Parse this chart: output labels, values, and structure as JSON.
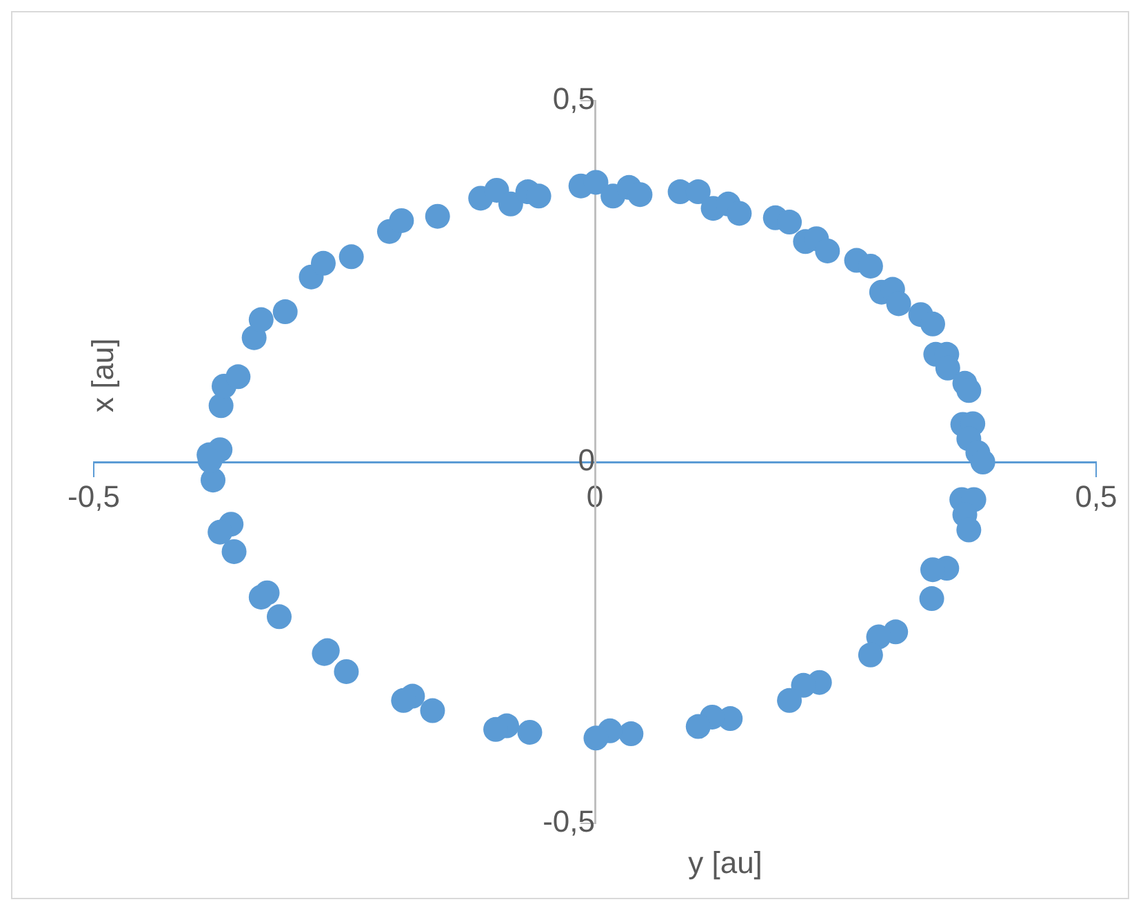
{
  "chart_data": {
    "type": "scatter",
    "xlabel": "y [au]",
    "ylabel": "x [au]",
    "xlim": [
      -0.5,
      0.5
    ],
    "ylim": [
      -0.5,
      0.5
    ],
    "xticks": [
      {
        "value": -0.5,
        "label": "-0,5"
      },
      0,
      {
        "value": 0.5,
        "label": "0,5"
      }
    ],
    "yticks": [
      {
        "value": -0.5,
        "label": "-0,5"
      },
      0,
      {
        "value": 0.5,
        "label": "0,5"
      }
    ],
    "grid": false,
    "legend": false,
    "marker": "circle",
    "series": [
      {
        "color": "#5b9bd5",
        "x": [
          -0.385,
          -0.374,
          -0.373,
          -0.37,
          -0.356,
          -0.34,
          -0.333,
          -0.309,
          -0.283,
          -0.271,
          -0.243,
          -0.205,
          -0.193,
          -0.157,
          -0.114,
          -0.098,
          -0.084,
          -0.067,
          -0.056,
          -0.014,
          0.001,
          0.018,
          0.034,
          0.045,
          0.085,
          0.103,
          0.118,
          0.133,
          0.144,
          0.18,
          0.194,
          0.21,
          0.221,
          0.232,
          0.261,
          0.275,
          0.286,
          0.297,
          0.303,
          0.325,
          0.337,
          0.34,
          0.351,
          0.352,
          0.369,
          0.373,
          0.367,
          0.377,
          0.373,
          0.382,
          0.387,
          0.366,
          0.378,
          0.369,
          0.373,
          0.351,
          0.337,
          0.336,
          0.3,
          0.283,
          0.275,
          0.224,
          0.208,
          0.194,
          0.135,
          0.117,
          0.103,
          0.036,
          0.015,
          0.001,
          -0.065,
          -0.088,
          -0.099,
          -0.162,
          -0.182,
          -0.191,
          -0.248,
          -0.267,
          -0.27,
          -0.315,
          -0.327,
          -0.333,
          -0.36,
          -0.363,
          -0.374,
          -0.381,
          -0.384
        ],
        "values": [
          0.01,
          0.017,
          0.078,
          0.105,
          0.118,
          0.172,
          0.197,
          0.208,
          0.256,
          0.275,
          0.284,
          0.319,
          0.334,
          0.34,
          0.365,
          0.376,
          0.357,
          0.374,
          0.368,
          0.382,
          0.387,
          0.368,
          0.38,
          0.37,
          0.374,
          0.374,
          0.351,
          0.357,
          0.344,
          0.338,
          0.332,
          0.305,
          0.309,
          0.292,
          0.279,
          0.271,
          0.235,
          0.239,
          0.219,
          0.204,
          0.191,
          0.149,
          0.149,
          0.13,
          0.109,
          0.099,
          0.052,
          0.053,
          0.032,
          0.013,
          0.0,
          -0.052,
          -0.052,
          -0.073,
          -0.094,
          -0.147,
          -0.149,
          -0.189,
          -0.235,
          -0.242,
          -0.267,
          -0.305,
          -0.309,
          -0.33,
          -0.355,
          -0.353,
          -0.366,
          -0.376,
          -0.372,
          -0.382,
          -0.374,
          -0.365,
          -0.37,
          -0.344,
          -0.324,
          -0.33,
          -0.29,
          -0.261,
          -0.265,
          -0.214,
          -0.181,
          -0.187,
          -0.124,
          -0.086,
          -0.097,
          -0.025,
          0.002
        ]
      }
    ]
  }
}
